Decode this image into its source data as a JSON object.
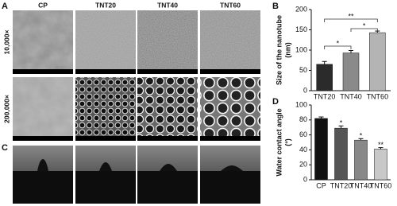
{
  "figure": {
    "panel_labels": [
      "A",
      "B",
      "C",
      "D"
    ],
    "columns": [
      "CP",
      "TNT20",
      "TNT40",
      "TNT60"
    ],
    "rows": [
      "10,000×",
      "200,000×"
    ]
  },
  "chart_data": [
    {
      "type": "bar",
      "y_label": [
        "Size of the nanotube",
        "(nm)"
      ],
      "categories": [
        "TNT20",
        "TNT40",
        "TNT60"
      ],
      "values": [
        65,
        93,
        143
      ],
      "errors": [
        7,
        6,
        4
      ],
      "colors": [
        "#2b2b2b",
        "#8a8a8a",
        "#b4b4b4"
      ],
      "ylim": [
        0,
        200
      ],
      "yticks": [
        0,
        50,
        100,
        150,
        200
      ],
      "annotations": [
        "*",
        "*",
        "**"
      ]
    },
    {
      "type": "bar",
      "y_label": [
        "Water contact angle",
        "(°)"
      ],
      "categories": [
        "CP",
        "TNT20",
        "TNT40",
        "TNT60"
      ],
      "values": [
        82,
        69,
        53,
        41
      ],
      "errors": [
        2,
        3,
        2,
        2
      ],
      "colors": [
        "#111111",
        "#555555",
        "#888888",
        "#c8c8c8"
      ],
      "ylim": [
        0,
        100
      ],
      "yticks": [
        0,
        20,
        40,
        60,
        80,
        100
      ],
      "annotations": [
        null,
        "*",
        "*",
        "**"
      ]
    }
  ]
}
